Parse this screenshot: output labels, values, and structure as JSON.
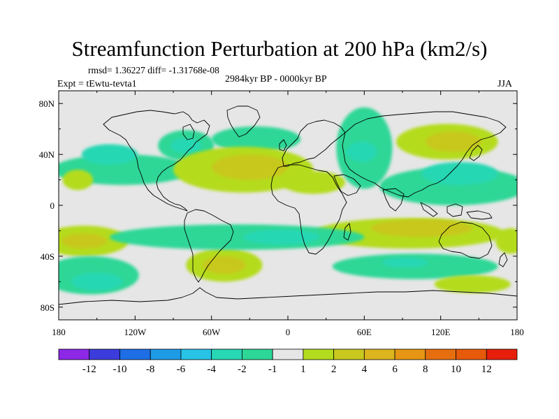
{
  "title": "Streamfunction Perturbation at 200 hPa (km2/s)",
  "stats": "rmsd= 1.36227 diff= -1.31768e-08",
  "period": "2984kyr BP - 0000kyr BP",
  "experiment": "Expt = tEwtu-tevta1",
  "season": "JJA",
  "map": {
    "lon_range": [
      -180,
      180
    ],
    "lat_range": [
      -90,
      90
    ],
    "lat_ticks": [
      {
        "value": 80,
        "label": "80N"
      },
      {
        "value": 40,
        "label": "40N"
      },
      {
        "value": 0,
        "label": "0"
      },
      {
        "value": -40,
        "label": "40S"
      },
      {
        "value": -80,
        "label": "80S"
      }
    ],
    "lon_ticks": [
      {
        "value": -180,
        "label": "180"
      },
      {
        "value": -120,
        "label": "120W"
      },
      {
        "value": -60,
        "label": "60W"
      },
      {
        "value": 0,
        "label": "0"
      },
      {
        "value": 60,
        "label": "60E"
      },
      {
        "value": 120,
        "label": "120E"
      },
      {
        "value": 180,
        "label": "180"
      }
    ],
    "background_color": "#e6e6e6",
    "anomalies": [
      {
        "lon": -130,
        "lat": 28,
        "rlon": 55,
        "rlat": 12,
        "level": -2
      },
      {
        "lon": -140,
        "lat": 40,
        "rlon": 22,
        "rlat": 8,
        "level": -3
      },
      {
        "lon": -80,
        "lat": 47,
        "rlon": 22,
        "rlat": 12,
        "level": -2
      },
      {
        "lon": -80,
        "lat": 47,
        "rlon": 12,
        "rlat": 6,
        "level": -3
      },
      {
        "lon": -25,
        "lat": 52,
        "rlon": 35,
        "rlat": 10,
        "level": -2
      },
      {
        "lon": 60,
        "lat": 45,
        "rlon": 22,
        "rlat": 32,
        "level": -2
      },
      {
        "lon": 58,
        "lat": 42,
        "rlon": 12,
        "rlat": 8,
        "level": -3
      },
      {
        "lon": 130,
        "lat": 15,
        "rlon": 58,
        "rlat": 15,
        "level": -2
      },
      {
        "lon": 135,
        "lat": 25,
        "rlon": 30,
        "rlat": 9,
        "level": -3
      },
      {
        "lon": -35,
        "lat": 28,
        "rlon": 55,
        "rlat": 18,
        "level": 1
      },
      {
        "lon": -30,
        "lat": 30,
        "rlon": 30,
        "rlat": 10,
        "level": 2
      },
      {
        "lon": 20,
        "lat": 18,
        "rlon": 25,
        "rlat": 9,
        "level": 1
      },
      {
        "lon": 125,
        "lat": 50,
        "rlon": 40,
        "rlat": 14,
        "level": 1
      },
      {
        "lon": 130,
        "lat": 50,
        "rlon": 22,
        "rlat": 8,
        "level": 2
      },
      {
        "lon": -165,
        "lat": 20,
        "rlon": 12,
        "rlat": 8,
        "level": 1
      },
      {
        "lon": 95,
        "lat": -22,
        "rlon": 75,
        "rlat": 12,
        "level": 1
      },
      {
        "lon": 105,
        "lat": -18,
        "rlon": 40,
        "rlat": 7,
        "level": 2
      },
      {
        "lon": -160,
        "lat": -28,
        "rlon": 35,
        "rlat": 12,
        "level": 1
      },
      {
        "lon": -160,
        "lat": -28,
        "rlon": 18,
        "rlat": 6,
        "level": 2
      },
      {
        "lon": 175,
        "lat": -28,
        "rlon": 12,
        "rlat": 10,
        "level": 1
      },
      {
        "lon": -50,
        "lat": -47,
        "rlon": 30,
        "rlat": 13,
        "level": 1
      },
      {
        "lon": -50,
        "lat": -47,
        "rlon": 17,
        "rlat": 7,
        "level": 2
      },
      {
        "lon": -40,
        "lat": -25,
        "rlon": 100,
        "rlat": 10,
        "level": -2
      },
      {
        "lon": -5,
        "lat": -25,
        "rlon": 30,
        "rlat": 6,
        "level": -3
      },
      {
        "lon": -155,
        "lat": -55,
        "rlon": 38,
        "rlat": 15,
        "level": -2
      },
      {
        "lon": -150,
        "lat": -60,
        "rlon": 20,
        "rlat": 7,
        "level": -3
      },
      {
        "lon": 100,
        "lat": -48,
        "rlon": 65,
        "rlat": 10,
        "level": -2
      },
      {
        "lon": 92,
        "lat": -45,
        "rlon": 18,
        "rlat": 4,
        "level": -3
      },
      {
        "lon": 145,
        "lat": -62,
        "rlon": 30,
        "rlat": 7,
        "level": 1
      }
    ]
  },
  "colorbar": {
    "labels": [
      "-12",
      "-10",
      "-8",
      "-6",
      "-4",
      "-2",
      "-1",
      "1",
      "2",
      "4",
      "6",
      "8",
      "10",
      "12"
    ],
    "colors": [
      "#8c28e6",
      "#3c3cdc",
      "#1e6ee6",
      "#1e9be6",
      "#28c3e6",
      "#28d7b4",
      "#2dd796",
      "#e6e6e6",
      "#b4dc1e",
      "#c8c81e",
      "#dcb41e",
      "#e69614",
      "#e66e0f",
      "#e65a0a",
      "#e61e0a"
    ]
  }
}
